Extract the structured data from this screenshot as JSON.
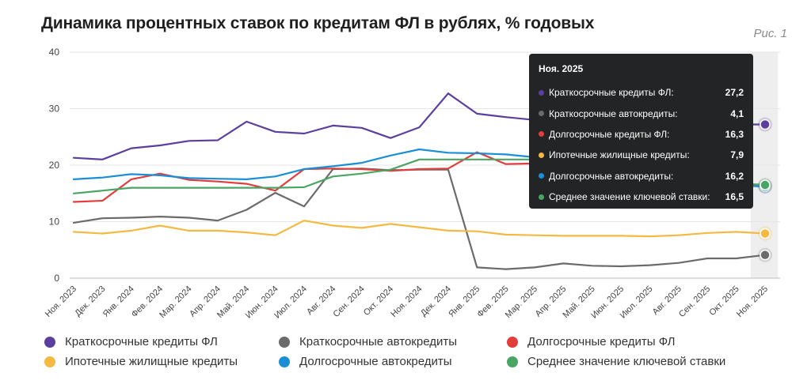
{
  "title": "Динамика процентных ставок по кредитам ФЛ в рублях, % годовых",
  "figure_label": "Рис. 1",
  "chart_data": {
    "type": "line",
    "categories": [
      "Ноя. 2023",
      "Дек. 2023",
      "Янв. 2024",
      "Фев. 2024",
      "Мар. 2024",
      "Апр. 2024",
      "Май. 2024",
      "Июн. 2024",
      "Июл. 2024",
      "Авг. 2024",
      "Сен. 2024",
      "Окт. 2024",
      "Ноя. 2024",
      "Дек. 2024",
      "Янв. 2025",
      "Фев. 2025",
      "Мар. 2025",
      "Апр. 2025",
      "Май. 2025",
      "Июн. 2025",
      "Июл. 2025",
      "Авг. 2025",
      "Сен. 2025",
      "Окт. 2025",
      "Ноя. 2025"
    ],
    "ylim": [
      0,
      40
    ],
    "yticks": [
      0,
      10,
      20,
      30,
      40
    ],
    "grid": true,
    "highlighted_category": "Ноя. 2025",
    "series": [
      {
        "name": "Краткосрочные кредиты ФЛ",
        "color": "#5b3f9e",
        "values": [
          21.3,
          21.0,
          23.0,
          23.5,
          24.3,
          24.4,
          27.7,
          25.9,
          25.6,
          27.0,
          26.6,
          24.8,
          26.7,
          32.7,
          29.1,
          28.5,
          28.0,
          27.7,
          27.6,
          27.5,
          27.4,
          27.3,
          27.2,
          27.2,
          27.2
        ]
      },
      {
        "name": "Краткосрочные автокредиты",
        "color": "#6b6b6b",
        "values": [
          9.8,
          10.6,
          10.7,
          10.9,
          10.7,
          10.2,
          12.1,
          15.1,
          12.7,
          19.3,
          19.4,
          19.1,
          19.2,
          19.2,
          1.9,
          1.6,
          1.9,
          2.6,
          2.2,
          2.1,
          2.3,
          2.7,
          3.5,
          3.5,
          4.1
        ]
      },
      {
        "name": "Долгосрочные кредиты ФЛ",
        "color": "#e23d3d",
        "values": [
          13.5,
          13.7,
          17.5,
          18.5,
          17.4,
          17.1,
          16.7,
          15.5,
          19.3,
          19.4,
          19.3,
          19.0,
          19.3,
          19.4,
          22.3,
          20.2,
          20.3,
          19.0,
          18.5,
          18.0,
          17.6,
          17.2,
          16.8,
          16.5,
          16.3
        ]
      },
      {
        "name": "Ипотечные жилищные кредиты",
        "color": "#f5b942",
        "values": [
          8.2,
          7.9,
          8.4,
          9.3,
          8.4,
          8.4,
          8.1,
          7.6,
          10.2,
          9.3,
          8.9,
          9.6,
          9.0,
          8.4,
          8.3,
          7.7,
          7.6,
          7.5,
          7.5,
          7.5,
          7.4,
          7.6,
          8.0,
          8.2,
          7.9
        ]
      },
      {
        "name": "Долгосрочные автокредиты",
        "color": "#1a8fd6",
        "values": [
          17.5,
          17.8,
          18.4,
          18.2,
          17.7,
          17.6,
          17.5,
          18.0,
          19.3,
          19.8,
          20.4,
          21.7,
          22.8,
          22.2,
          22.1,
          21.9,
          21.4,
          20.5,
          19.5,
          18.5,
          17.8,
          17.2,
          16.8,
          16.4,
          16.2
        ]
      },
      {
        "name": "Среднее значение ключевой ставки",
        "color": "#4aa564",
        "values": [
          15.0,
          15.5,
          16.0,
          16.0,
          16.0,
          16.0,
          16.0,
          16.0,
          16.1,
          18.0,
          18.5,
          19.2,
          21.0,
          21.0,
          21.0,
          21.0,
          21.0,
          21.0,
          21.0,
          20.5,
          19.5,
          18.5,
          17.5,
          16.8,
          16.5
        ]
      }
    ]
  },
  "tooltip": {
    "title": "Ноя. 2025",
    "rows": [
      {
        "label": "Краткосрочные кредиты ФЛ:",
        "value": "27,2",
        "color": "#5b3f9e"
      },
      {
        "label": "Краткосрочные автокредиты:",
        "value": "4,1",
        "color": "#6b6b6b"
      },
      {
        "label": "Долгосрочные кредиты ФЛ:",
        "value": "16,3",
        "color": "#e23d3d"
      },
      {
        "label": "Ипотечные жилищные кредиты:",
        "value": "7,9",
        "color": "#f5b942"
      },
      {
        "label": "Долгосрочные автокредиты:",
        "value": "16,2",
        "color": "#1a8fd6"
      },
      {
        "label": "Среднее значение ключевой ставки:",
        "value": "16,5",
        "color": "#4aa564"
      }
    ]
  },
  "legend": [
    {
      "label": "Краткосрочные кредиты ФЛ",
      "color": "#5b3f9e"
    },
    {
      "label": "Краткосрочные автокредиты",
      "color": "#6b6b6b"
    },
    {
      "label": "Долгосрочные кредиты ФЛ",
      "color": "#e23d3d"
    },
    {
      "label": "Ипотечные жилищные кредиты",
      "color": "#f5b942"
    },
    {
      "label": "Долгосрочные автокредиты",
      "color": "#1a8fd6"
    },
    {
      "label": "Среднее значение ключевой ставки",
      "color": "#4aa564"
    }
  ]
}
